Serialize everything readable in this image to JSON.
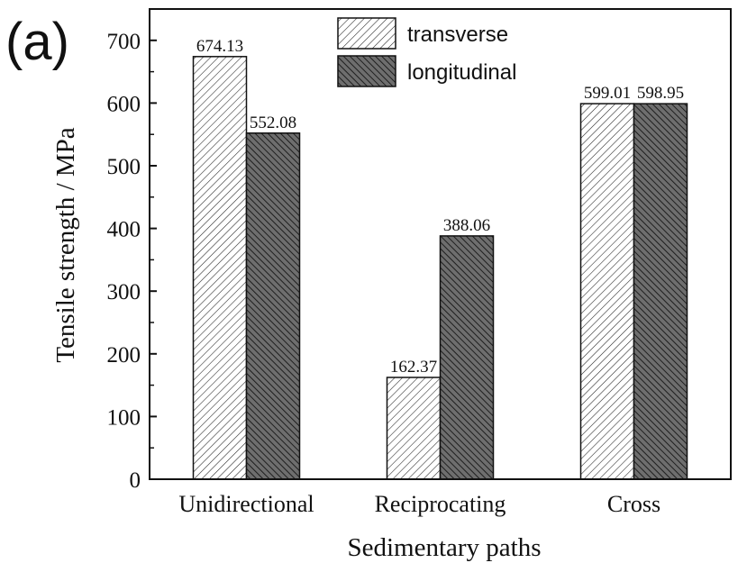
{
  "panel_label": "(a)",
  "chart_data": {
    "type": "bar",
    "title": "",
    "xlabel": "Sedimentary paths",
    "ylabel": "Tensile strength / MPa",
    "categories": [
      "Unidirectional",
      "Reciprocating",
      "Cross"
    ],
    "series": [
      {
        "name": "transverse",
        "values": [
          674.13,
          162.37,
          599.01
        ],
        "labels": [
          "674.13",
          "162.37",
          "599.01"
        ],
        "pattern": "light-hatch",
        "color": "#ffffff"
      },
      {
        "name": "longitudinal",
        "values": [
          552.08,
          388.06,
          598.95
        ],
        "labels": [
          "552.08",
          "388.06",
          "598.95"
        ],
        "pattern": "dark-hatch",
        "color": "#6e6e6e"
      }
    ],
    "ylim": [
      0,
      750
    ],
    "yticks": [
      "0",
      "100",
      "200",
      "300",
      "400",
      "500",
      "600",
      "700"
    ],
    "legend_position": "top-center",
    "grid": false
  }
}
